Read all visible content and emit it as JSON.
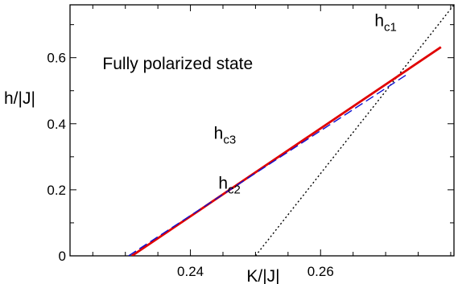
{
  "chart_data": {
    "type": "line",
    "xlabel": "K/|J|",
    "ylabel": "h/|J|",
    "xlim": [
      0.2215,
      0.2805
    ],
    "ylim": [
      0,
      0.76
    ],
    "xticks": [
      {
        "value": 0.24,
        "label": "0.24"
      },
      {
        "value": 0.26,
        "label": "0.26"
      }
    ],
    "yticks": [
      {
        "value": 0,
        "label": "0"
      },
      {
        "value": 0.2,
        "label": "0.2"
      },
      {
        "value": 0.4,
        "label": "0.4"
      },
      {
        "value": 0.6,
        "label": "0.6"
      }
    ],
    "x_minor_step": 0.005,
    "y_minor_step": 0.1,
    "grid": false,
    "series": [
      {
        "name": "hc1",
        "color": "#000000",
        "style": "dotted",
        "x": [
          0.25,
          0.2805
        ],
        "y": [
          0,
          0.76
        ]
      },
      {
        "name": "hc3",
        "color": "#e00000",
        "style": "solid",
        "x": [
          0.231,
          0.2785
        ],
        "y": [
          0,
          0.632
        ]
      },
      {
        "name": "hc2",
        "color": "#1010d0",
        "style": "dashed",
        "x": [
          0.2305,
          0.2735
        ],
        "y": [
          0,
          0.552
        ]
      }
    ],
    "annotations": [
      {
        "text": "Fully polarized state",
        "x": 0.2265,
        "y": 0.565,
        "color": "#000000"
      },
      {
        "text": "h",
        "sub": "c3",
        "x": 0.2436,
        "y": 0.355,
        "color": "#e00000"
      },
      {
        "text": "h",
        "sub": "c2",
        "x": 0.2443,
        "y": 0.203,
        "color": "#1010d0"
      },
      {
        "text": "h",
        "sub": "c1",
        "x": 0.2683,
        "y": 0.695,
        "color": "#000000"
      }
    ]
  }
}
